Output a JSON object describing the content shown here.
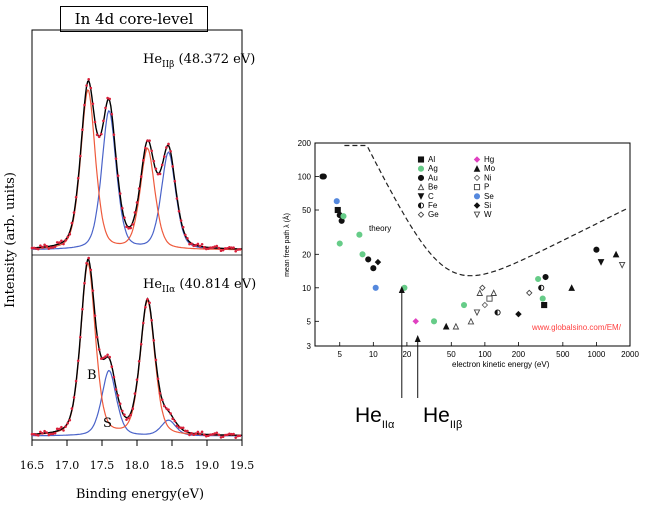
{
  "left_box_title": "In 4d core-level",
  "chart_data": [
    {
      "type": "line",
      "panels": [
        {
          "label_main": "He",
          "label_sub": "IIβ",
          "label_tail": " (48.372 eV)",
          "series": [
            {
              "name": "data",
              "color": "#d8203a",
              "kind": "points"
            },
            {
              "name": "fit",
              "color": "#000000"
            },
            {
              "name": "component B",
              "color": "#ee5a3c"
            },
            {
              "name": "component S",
              "color": "#4a63c9"
            }
          ]
        },
        {
          "label_main": "He",
          "label_sub": "IIα",
          "label_tail": " (40.814 eV)",
          "component_labels": [
            "B",
            "S"
          ]
        }
      ],
      "xlabel": "Binding energy(eV)",
      "ylabel": "Intensity (arb. units)",
      "xlim": [
        16.5,
        19.5
      ],
      "x_ticks": [
        "16.5",
        "17.0",
        "17.5",
        "18.0",
        "18.5",
        "19.0",
        "19.5"
      ],
      "peaks": {
        "B_top": [
          17.3,
          18.15
        ],
        "S_top": [
          17.6,
          18.45
        ],
        "B_bottom": [
          17.3,
          18.15
        ],
        "S_bottom": [
          17.6,
          18.45
        ]
      }
    },
    {
      "type": "scatter",
      "xscale": "log",
      "yscale": "log",
      "xlim": [
        3,
        2000
      ],
      "ylim": [
        3,
        200
      ],
      "x_ticks": [
        "2",
        "5",
        "10",
        "20",
        "50",
        "100",
        "200",
        "500",
        "1000",
        "2000"
      ],
      "y_ticks": [
        "3",
        "5",
        "10",
        "20",
        "50",
        "100",
        "200"
      ],
      "xlabel": "electron kinetic energy  (eV)",
      "ylabel": "mean free path λ (Å)",
      "curve_label": "theory",
      "watermark": "www.globalsino.com/EM/",
      "legend": [
        {
          "label": "Al",
          "symbol": "square",
          "color": "#111111"
        },
        {
          "label": "Ag",
          "symbol": "circle",
          "color": "#66cc88"
        },
        {
          "label": "Au",
          "symbol": "circle",
          "color": "#111111"
        },
        {
          "label": "Be",
          "symbol": "triangle-open",
          "color": "#444444"
        },
        {
          "label": "C",
          "symbol": "triangle-down",
          "color": "#111111"
        },
        {
          "label": "Fe",
          "symbol": "half-circle",
          "color": "#111111"
        },
        {
          "label": "Ge",
          "symbol": "diamond-open",
          "color": "#444444"
        },
        {
          "label": "Hg",
          "symbol": "diamond",
          "color": "#e040c0"
        },
        {
          "label": "Mo",
          "symbol": "triangle",
          "color": "#111111"
        },
        {
          "label": "Ni",
          "symbol": "diamond-open",
          "color": "#666666"
        },
        {
          "label": "P",
          "symbol": "square-open",
          "color": "#444444"
        },
        {
          "label": "Se",
          "symbol": "circle",
          "color": "#5588dd"
        },
        {
          "label": "Si",
          "symbol": "diamond",
          "color": "#111111"
        },
        {
          "label": "W",
          "symbol": "triangle-down-open",
          "color": "#444444"
        }
      ],
      "points": [
        {
          "x": 3.5,
          "y": 100,
          "m": "Au"
        },
        {
          "x": 3.6,
          "y": 100,
          "m": "Au"
        },
        {
          "x": 4.7,
          "y": 60,
          "m": "Se"
        },
        {
          "x": 4.8,
          "y": 50,
          "m": "Al"
        },
        {
          "x": 5.0,
          "y": 45,
          "m": "Au"
        },
        {
          "x": 5.2,
          "y": 40,
          "m": "Au"
        },
        {
          "x": 5.4,
          "y": 44,
          "m": "Ag"
        },
        {
          "x": 5.0,
          "y": 25,
          "m": "Ag"
        },
        {
          "x": 7.5,
          "y": 30,
          "m": "Ag"
        },
        {
          "x": 8.0,
          "y": 20,
          "m": "Ag"
        },
        {
          "x": 9.0,
          "y": 18,
          "m": "Au"
        },
        {
          "x": 10,
          "y": 15,
          "m": "Au"
        },
        {
          "x": 11,
          "y": 17,
          "m": "Si"
        },
        {
          "x": 10.5,
          "y": 10,
          "m": "Se"
        },
        {
          "x": 19,
          "y": 10,
          "m": "Ag"
        },
        {
          "x": 24,
          "y": 5,
          "m": "Hg"
        },
        {
          "x": 35,
          "y": 5,
          "m": "Ag"
        },
        {
          "x": 45,
          "y": 4.5,
          "m": "Mo"
        },
        {
          "x": 55,
          "y": 4.5,
          "m": "Be"
        },
        {
          "x": 65,
          "y": 7,
          "m": "Ag"
        },
        {
          "x": 75,
          "y": 5,
          "m": "Be"
        },
        {
          "x": 85,
          "y": 6,
          "m": "W"
        },
        {
          "x": 90,
          "y": 9,
          "m": "Be"
        },
        {
          "x": 95,
          "y": 10,
          "m": "Ge"
        },
        {
          "x": 100,
          "y": 7,
          "m": "Ni"
        },
        {
          "x": 110,
          "y": 8,
          "m": "P"
        },
        {
          "x": 120,
          "y": 9,
          "m": "Be"
        },
        {
          "x": 130,
          "y": 6,
          "m": "Fe"
        },
        {
          "x": 200,
          "y": 5.8,
          "m": "Si"
        },
        {
          "x": 250,
          "y": 9,
          "m": "Ge"
        },
        {
          "x": 300,
          "y": 12,
          "m": "Ag"
        },
        {
          "x": 320,
          "y": 10,
          "m": "Fe"
        },
        {
          "x": 330,
          "y": 8,
          "m": "Ag"
        },
        {
          "x": 340,
          "y": 7,
          "m": "Al"
        },
        {
          "x": 350,
          "y": 12.5,
          "m": "Au"
        },
        {
          "x": 600,
          "y": 10,
          "m": "Mo"
        },
        {
          "x": 1000,
          "y": 22,
          "m": "Au"
        },
        {
          "x": 1100,
          "y": 17,
          "m": "C"
        },
        {
          "x": 1500,
          "y": 20,
          "m": "Mo"
        },
        {
          "x": 1700,
          "y": 16,
          "m": "W"
        }
      ],
      "annotations": [
        {
          "main": "He",
          "sub": "IIα",
          "x": 18
        },
        {
          "main": "He",
          "sub": "IIβ",
          "x": 25
        }
      ]
    }
  ]
}
